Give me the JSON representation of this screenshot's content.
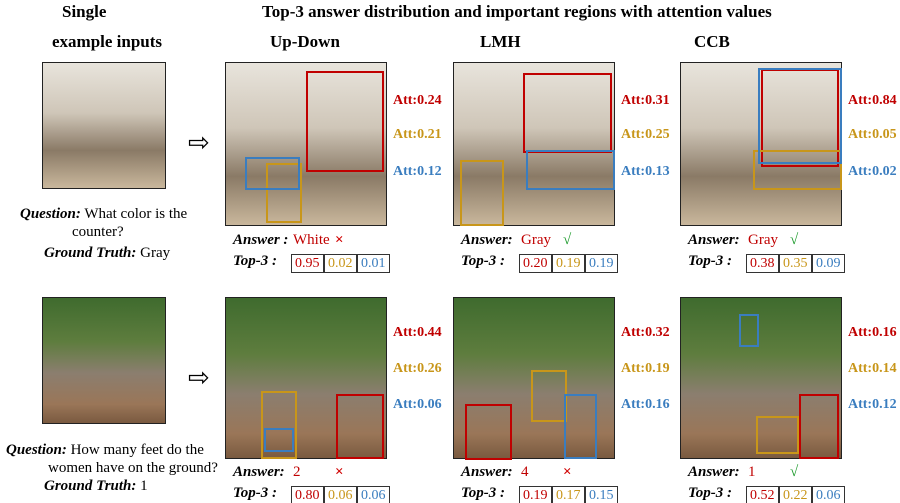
{
  "header": {
    "left_title": [
      "Single",
      "example inputs"
    ],
    "right_title": "Top-3 answer distribution and important regions with attention values",
    "columns": [
      "Up-Down",
      "LMH",
      "CCB"
    ]
  },
  "rows": [
    {
      "question_label": "Question:",
      "question": [
        "What color is the",
        "counter?"
      ],
      "ground_truth_label": "Ground Truth:",
      "ground_truth": "Gray",
      "models": [
        {
          "att": [
            "Att:0.24",
            "Att:0.21",
            "Att:0.12"
          ],
          "answer_label": "Answer :",
          "answer": "White",
          "verdict": "×",
          "top3_label": "Top-3 :",
          "top3": [
            "0.95",
            "0.02",
            "0.01"
          ]
        },
        {
          "att": [
            "Att:0.31",
            "Att:0.25",
            "Att:0.13"
          ],
          "answer_label": "Answer:",
          "answer": "Gray",
          "verdict": "√",
          "top3_label": "Top-3 :",
          "top3": [
            "0.20",
            "0.19",
            "0.19"
          ]
        },
        {
          "att": [
            "Att:0.84",
            "Att:0.05",
            "Att:0.02"
          ],
          "answer_label": "Answer:",
          "answer": "Gray",
          "verdict": "√",
          "top3_label": "Top-3 :",
          "top3": [
            "0.38",
            "0.35",
            "0.09"
          ]
        }
      ]
    },
    {
      "question_label": "Question:",
      "question": [
        "How many feet do the",
        "women have on the ground?"
      ],
      "ground_truth_label": "Ground Truth:",
      "ground_truth": "1",
      "models": [
        {
          "att": [
            "Att:0.44",
            "Att:0.26",
            "Att:0.06"
          ],
          "answer_label": "Answer:",
          "answer": "2",
          "verdict": "×",
          "top3_label": "Top-3 :",
          "top3": [
            "0.80",
            "0.06",
            "0.06"
          ]
        },
        {
          "att": [
            "Att:0.32",
            "Att:0.19",
            "Att:0.16"
          ],
          "answer_label": "Answer:",
          "answer": "4",
          "verdict": "×",
          "top3_label": "Top-3 :",
          "top3": [
            "0.19",
            "0.17",
            "0.15"
          ]
        },
        {
          "att": [
            "Att:0.16",
            "Att:0.14",
            "Att:0.12"
          ],
          "answer_label": "Answer:",
          "answer": "1",
          "verdict": "√",
          "top3_label": "Top-3 :",
          "top3": [
            "0.52",
            "0.22",
            "0.06"
          ]
        }
      ]
    }
  ]
}
